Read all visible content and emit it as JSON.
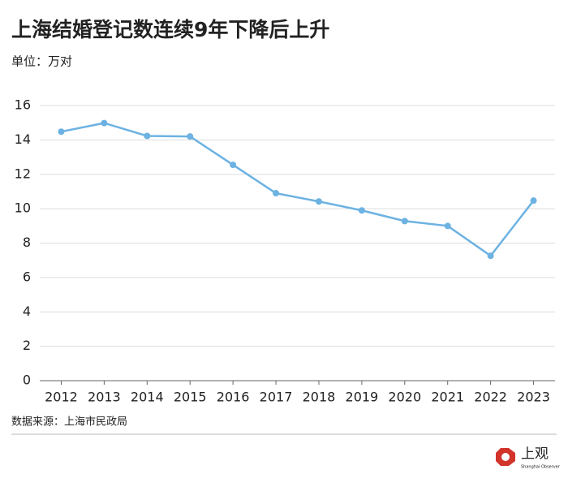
{
  "chart_data": {
    "type": "line",
    "title": "上海结婚登记数连续9年下降后上升",
    "subtitle": "单位：万对",
    "source": "数据来源：上海市民政局",
    "categories": [
      "2012",
      "2013",
      "2014",
      "2015",
      "2016",
      "2017",
      "2018",
      "2019",
      "2020",
      "2021",
      "2022",
      "2023"
    ],
    "series": [
      {
        "color": "#6cb2e2",
        "values": [
          14.48,
          14.98,
          14.23,
          14.2,
          12.55,
          10.9,
          10.42,
          9.9,
          9.28,
          9.0,
          7.26,
          10.47
        ]
      }
    ],
    "ylim": [
      0,
      16
    ],
    "yticks": [
      0,
      2,
      4,
      6,
      8,
      10,
      12,
      14,
      16
    ],
    "grid": true
  },
  "logo": {
    "name": "上观",
    "subtitle": "Shanghai Observer"
  }
}
